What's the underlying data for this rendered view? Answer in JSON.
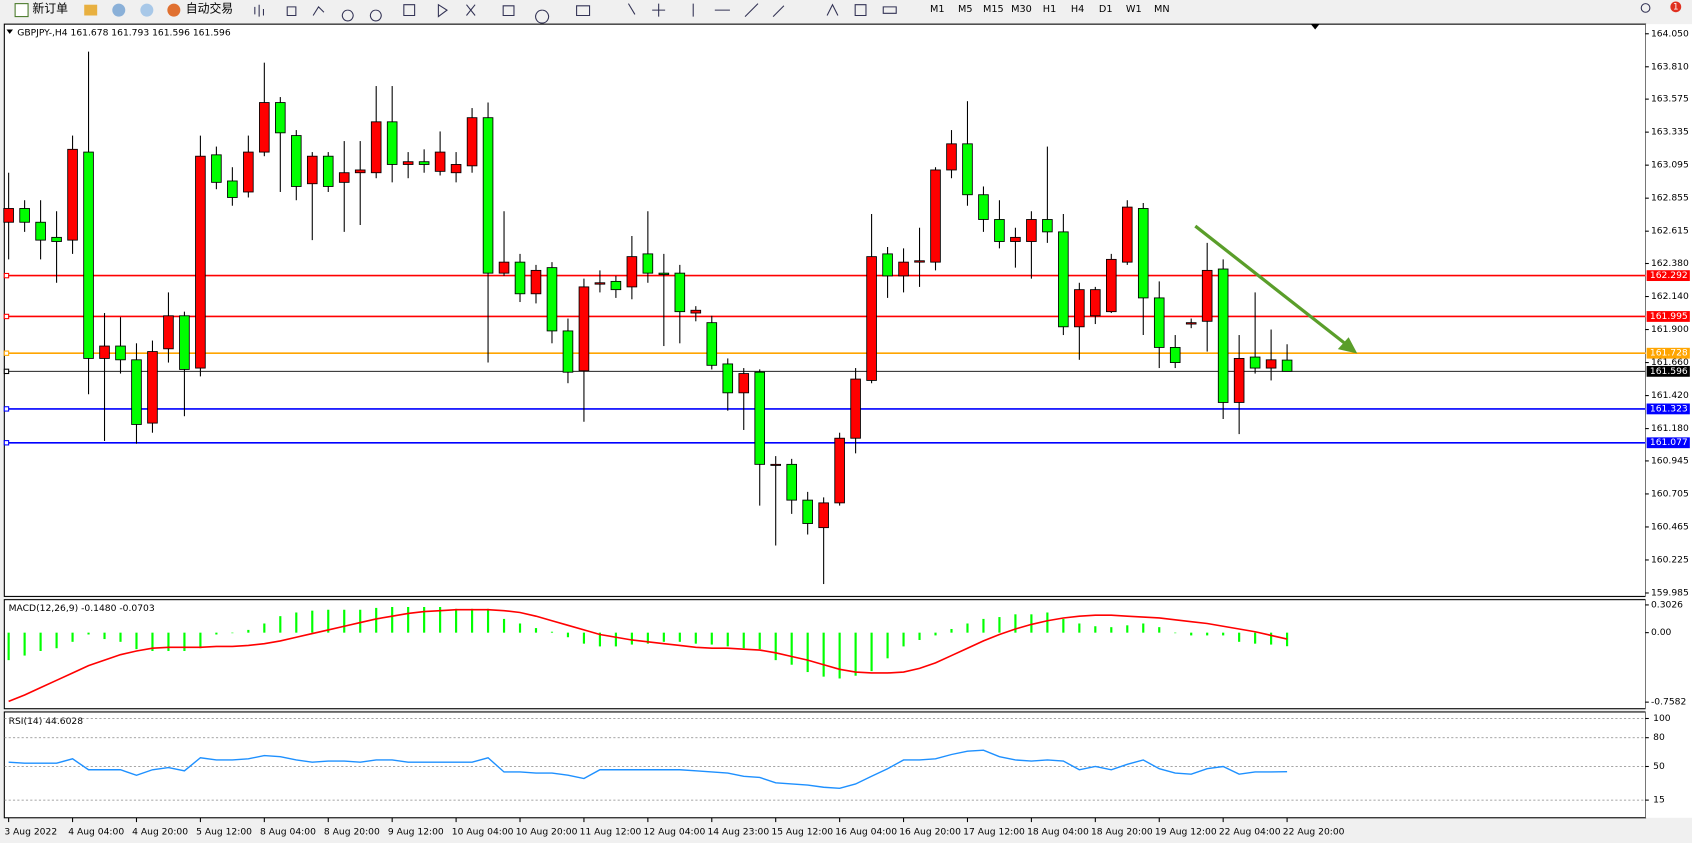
{
  "toolbar": {
    "new_order": "新订单",
    "auto_trading": "自动交易",
    "timeframes": [
      "M1",
      "M5",
      "M15",
      "M30",
      "H1",
      "H4",
      "D1",
      "W1",
      "MN"
    ],
    "notification_count": 1
  },
  "chart_data": [
    {
      "type": "candlestick",
      "title": "GBPJPY-,H4 161.678 161.793 161.596 161.596",
      "categories": [
        "3 Aug 2022",
        null,
        null,
        null,
        "4 Aug 04:00",
        null,
        null,
        null,
        "4 Aug 20:00",
        null,
        null,
        null,
        "5 Aug 12:00",
        null,
        null,
        null,
        "8 Aug 04:00",
        null,
        null,
        null,
        "8 Aug 20:00",
        null,
        null,
        null,
        "9 Aug 12:00",
        null,
        null,
        null,
        "10 Aug 04:00",
        null,
        null,
        null,
        "10 Aug 20:00",
        null,
        null,
        null,
        "11 Aug 12:00",
        null,
        null,
        null,
        "12 Aug 04:00",
        null,
        null,
        null,
        "14 Aug 23:00",
        null,
        null,
        null,
        "15 Aug 12:00",
        null,
        null,
        null,
        "16 Aug 04:00",
        null,
        null,
        null,
        "16 Aug 20:00",
        null,
        null,
        null,
        "17 Aug 12:00",
        null,
        null,
        null,
        "18 Aug 04:00",
        null,
        null,
        null,
        "18 Aug 20:00",
        null,
        null,
        null,
        "19 Aug 12:00",
        null,
        null,
        null,
        "22 Aug 04:00",
        null,
        null,
        null,
        "22 Aug 20:00"
      ],
      "open": [
        162.68,
        162.78,
        162.68,
        162.57,
        162.55,
        163.19,
        161.69,
        161.78,
        161.68,
        161.22,
        161.76,
        162.0,
        161.62,
        163.17,
        162.98,
        162.9,
        163.19,
        163.55,
        163.31,
        162.96,
        163.16,
        162.97,
        163.04,
        163.04,
        163.41,
        163.1,
        163.12,
        163.05,
        163.04,
        163.09,
        163.44,
        162.31,
        162.39,
        162.16,
        162.35,
        161.89,
        161.6,
        162.23,
        162.25,
        162.21,
        162.45,
        162.31,
        162.31,
        162.02,
        161.95,
        161.65,
        161.44,
        161.59,
        160.92,
        160.92,
        160.66,
        160.46,
        160.64,
        161.11,
        161.53,
        162.45,
        162.29,
        162.39,
        162.39,
        163.06,
        163.25,
        162.88,
        162.7,
        162.54,
        162.54,
        162.7,
        162.61,
        161.92,
        162.0,
        162.03,
        162.39,
        162.78,
        162.13,
        161.77,
        161.94,
        161.96,
        162.34,
        161.37,
        161.7,
        161.62,
        161.678
      ],
      "high": [
        163.04,
        162.84,
        162.84,
        162.76,
        163.31,
        163.92,
        162.02,
        161.99,
        161.8,
        161.82,
        162.17,
        162.03,
        163.31,
        163.23,
        163.08,
        163.31,
        163.84,
        163.59,
        163.35,
        163.19,
        163.19,
        163.27,
        163.27,
        163.67,
        163.67,
        163.19,
        163.21,
        163.34,
        163.19,
        163.51,
        163.55,
        162.76,
        162.45,
        162.37,
        162.39,
        161.98,
        162.27,
        162.33,
        162.29,
        162.58,
        162.76,
        162.45,
        162.37,
        162.07,
        162.0,
        161.69,
        161.62,
        161.61,
        160.98,
        160.96,
        160.72,
        160.68,
        161.15,
        161.62,
        162.74,
        162.5,
        162.49,
        162.64,
        163.08,
        163.35,
        163.56,
        162.94,
        162.84,
        162.64,
        162.76,
        163.23,
        162.74,
        162.24,
        162.21,
        162.45,
        162.84,
        162.82,
        162.25,
        161.86,
        161.98,
        162.53,
        162.41,
        161.86,
        162.17,
        161.9,
        161.793
      ],
      "low": [
        162.41,
        162.61,
        162.41,
        162.24,
        162.45,
        161.43,
        161.09,
        161.58,
        161.07,
        161.15,
        161.66,
        161.27,
        161.56,
        162.92,
        162.8,
        162.86,
        163.16,
        162.9,
        162.84,
        162.55,
        162.9,
        162.61,
        162.66,
        163.0,
        162.97,
        163.0,
        163.04,
        163.02,
        162.97,
        163.04,
        161.66,
        162.29,
        162.1,
        162.09,
        161.8,
        161.51,
        161.23,
        162.17,
        162.13,
        162.12,
        162.24,
        161.78,
        161.8,
        161.96,
        161.61,
        161.31,
        161.17,
        160.62,
        160.33,
        160.56,
        160.41,
        160.05,
        160.62,
        161.0,
        161.51,
        162.13,
        162.17,
        162.21,
        162.33,
        163.0,
        162.8,
        162.61,
        162.49,
        162.35,
        162.27,
        162.53,
        161.86,
        161.68,
        161.94,
        162.02,
        162.37,
        161.86,
        161.62,
        161.62,
        161.91,
        161.74,
        161.25,
        161.14,
        161.58,
        161.53,
        161.596
      ],
      "close": [
        162.78,
        162.68,
        162.55,
        162.54,
        163.21,
        161.69,
        161.78,
        161.68,
        161.21,
        161.74,
        162.0,
        161.61,
        163.16,
        162.97,
        162.86,
        163.19,
        163.55,
        163.33,
        162.94,
        163.16,
        162.94,
        163.04,
        163.06,
        163.41,
        163.1,
        163.12,
        163.1,
        163.19,
        163.1,
        163.44,
        162.31,
        162.39,
        162.16,
        162.33,
        161.89,
        161.59,
        162.21,
        162.24,
        162.19,
        162.43,
        162.31,
        162.3,
        162.03,
        162.04,
        161.64,
        161.44,
        161.58,
        160.92,
        160.92,
        160.66,
        160.49,
        160.64,
        161.11,
        161.54,
        162.43,
        162.29,
        162.39,
        162.4,
        163.06,
        163.25,
        162.88,
        162.7,
        162.54,
        162.57,
        162.7,
        162.61,
        161.92,
        162.19,
        162.19,
        162.41,
        162.79,
        162.13,
        161.77,
        161.66,
        161.95,
        162.33,
        161.37,
        161.69,
        161.62,
        161.68,
        161.596
      ],
      "up_color": "#ff0000",
      "down_color": "#00ff00",
      "ylim": [
        159.96,
        164.12
      ],
      "yticks": [
        {
          "value": 164.05,
          "label": "164.050"
        },
        {
          "value": 163.81,
          "label": "163.810"
        },
        163.575,
        163.335,
        163.095,
        162.855,
        162.615,
        {
          "value": 162.38,
          "label": "162.380"
        },
        {
          "value": 162.14,
          "label": "162.140"
        },
        {
          "value": 161.9,
          "label": "161.900"
        },
        {
          "value": 161.66,
          "label": "161.660"
        },
        {
          "value": 161.42,
          "label": "161.420"
        },
        {
          "value": 161.18,
          "label": "161.180"
        },
        160.945,
        160.705,
        160.465,
        160.225,
        159.985
      ],
      "price_lines": [
        {
          "value": 162.292,
          "color": "#ff0000"
        },
        {
          "value": 161.995,
          "color": "#ff0000"
        },
        {
          "value": 161.728,
          "color": "#ffa500"
        },
        {
          "value": 161.596,
          "color": "#000000"
        },
        {
          "value": 161.323,
          "color": "#0000ff"
        },
        {
          "value": 161.077,
          "color": "#0000ff"
        }
      ]
    },
    {
      "type": "macd",
      "title": "MACD(12,26,9) -0.1480 -0.0703",
      "histogram": [
        -0.3,
        -0.25,
        -0.2,
        -0.17,
        -0.1,
        -0.02,
        -0.07,
        -0.1,
        -0.18,
        -0.2,
        -0.2,
        -0.2,
        -0.17,
        -0.02,
        0.0,
        0.03,
        0.1,
        0.18,
        0.22,
        0.24,
        0.25,
        0.25,
        0.25,
        0.27,
        0.28,
        0.28,
        0.28,
        0.28,
        0.26,
        0.26,
        0.26,
        0.15,
        0.1,
        0.05,
        0.01,
        -0.05,
        -0.12,
        -0.15,
        -0.15,
        -0.13,
        -0.12,
        -0.1,
        -0.1,
        -0.12,
        -0.13,
        -0.15,
        -0.17,
        -0.18,
        -0.3,
        -0.35,
        -0.43,
        -0.48,
        -0.5,
        -0.47,
        -0.42,
        -0.28,
        -0.15,
        -0.08,
        -0.03,
        0.04,
        0.1,
        0.15,
        0.17,
        0.2,
        0.2,
        0.22,
        0.15,
        0.1,
        0.07,
        0.06,
        0.08,
        0.1,
        0.06,
        0.0,
        -0.03,
        -0.03,
        -0.03,
        -0.1,
        -0.12,
        -0.13,
        -0.148
      ],
      "signal": [
        -0.75,
        -0.68,
        -0.6,
        -0.52,
        -0.44,
        -0.36,
        -0.3,
        -0.24,
        -0.2,
        -0.17,
        -0.16,
        -0.16,
        -0.16,
        -0.15,
        -0.15,
        -0.14,
        -0.12,
        -0.09,
        -0.05,
        -0.01,
        0.03,
        0.07,
        0.11,
        0.15,
        0.18,
        0.21,
        0.23,
        0.24,
        0.25,
        0.25,
        0.25,
        0.24,
        0.22,
        0.18,
        0.13,
        0.08,
        0.03,
        -0.02,
        -0.05,
        -0.08,
        -0.1,
        -0.12,
        -0.14,
        -0.16,
        -0.17,
        -0.17,
        -0.18,
        -0.19,
        -0.22,
        -0.26,
        -0.3,
        -0.35,
        -0.4,
        -0.43,
        -0.44,
        -0.44,
        -0.43,
        -0.39,
        -0.33,
        -0.25,
        -0.17,
        -0.09,
        -0.02,
        0.04,
        0.09,
        0.13,
        0.16,
        0.18,
        0.19,
        0.19,
        0.18,
        0.17,
        0.16,
        0.14,
        0.12,
        0.1,
        0.07,
        0.04,
        0.01,
        -0.03,
        -0.0703
      ],
      "histogram_color": "#00ff00",
      "signal_color": "#ff0000",
      "ylim": [
        -0.83,
        0.36
      ],
      "yticks": [
        0.3026,
        {
          "value": 0,
          "label": "0.00"
        },
        -0.7582
      ]
    },
    {
      "type": "rsi",
      "title": "RSI(14) 44.6028",
      "values": [
        54.5,
        53.4,
        53.4,
        53.4,
        58.0,
        46.6,
        46.6,
        46.6,
        40.9,
        46.6,
        48.9,
        45.5,
        59.1,
        56.8,
        56.8,
        58.0,
        61.4,
        60.2,
        56.8,
        54.5,
        55.7,
        55.7,
        54.5,
        56.8,
        56.8,
        54.5,
        54.5,
        54.5,
        54.5,
        54.5,
        59.1,
        44.3,
        44.3,
        43.2,
        43.2,
        40.9,
        37.5,
        46.6,
        46.6,
        46.6,
        46.6,
        46.6,
        46.6,
        45.5,
        44.3,
        43.2,
        39.8,
        38.6,
        33.0,
        31.8,
        30.7,
        28.4,
        27.3,
        31.8,
        39.8,
        47.7,
        56.8,
        56.8,
        58.0,
        62.5,
        65.9,
        67.0,
        60.2,
        56.8,
        55.7,
        56.8,
        55.7,
        46.6,
        50.0,
        46.6,
        52.3,
        56.8,
        47.7,
        43.2,
        42.0,
        47.7,
        50.0,
        42.0,
        44.3,
        44.3,
        44.6028
      ],
      "color": "#1e90ff",
      "ylim": [
        -3.4,
        106.8
      ],
      "yticks": [
        100,
        80,
        50,
        15
      ]
    }
  ]
}
